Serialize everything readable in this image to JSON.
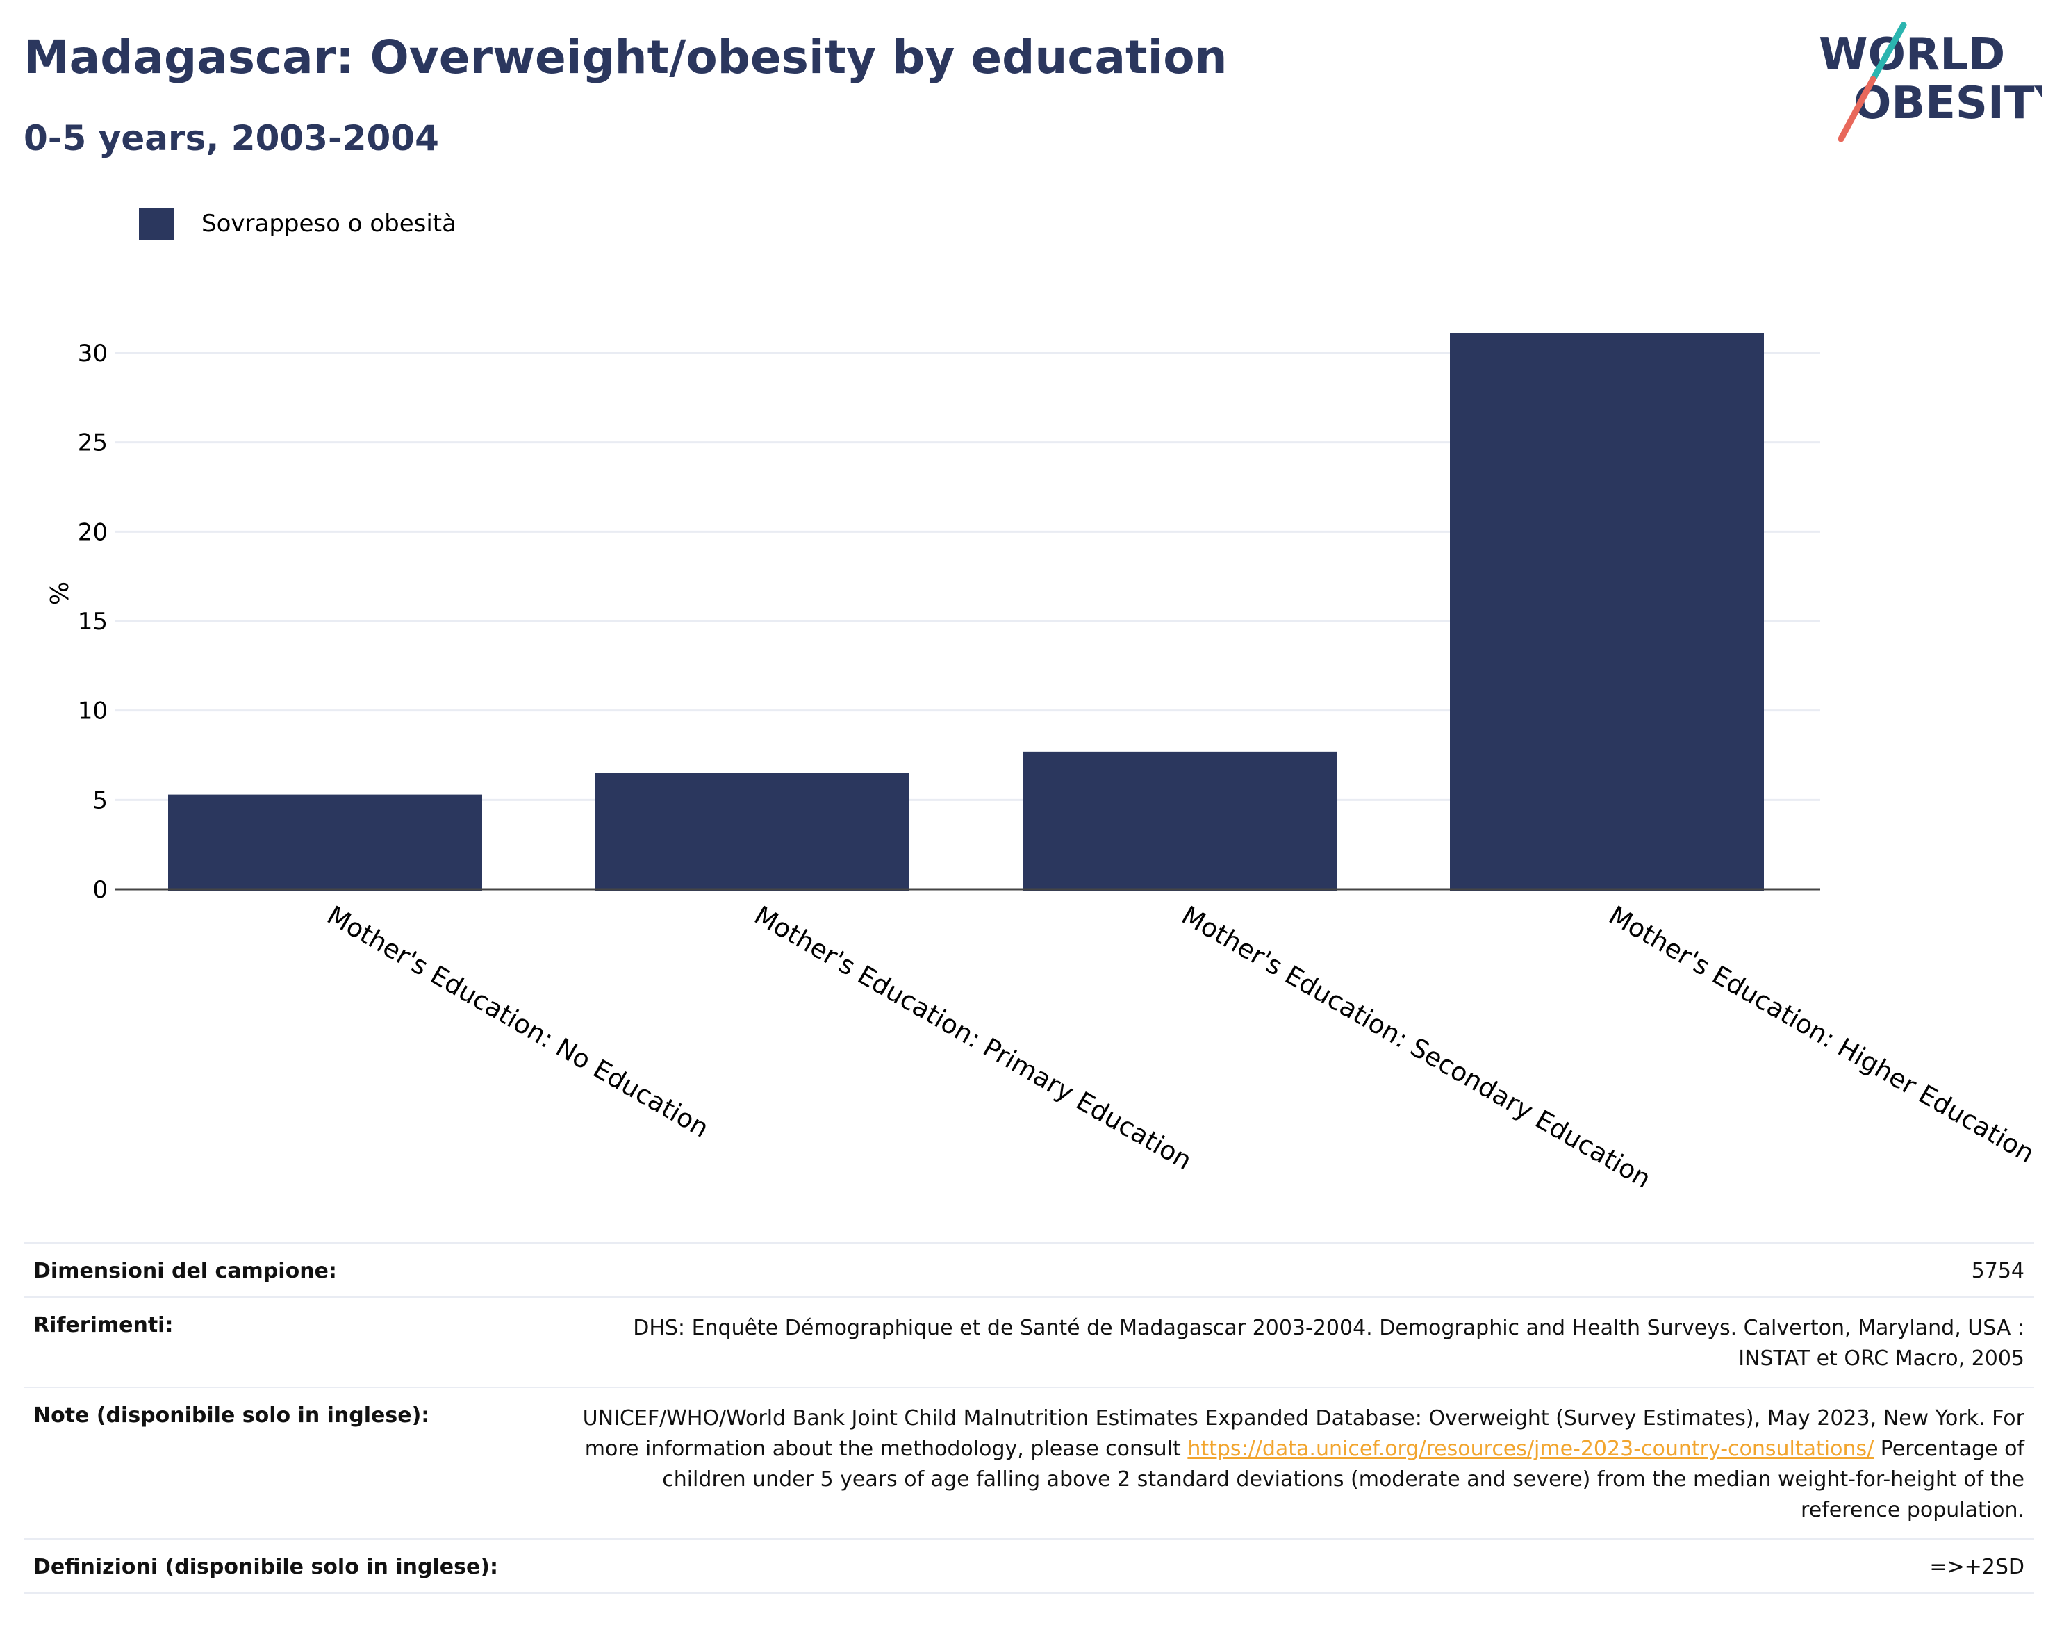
{
  "header": {
    "title": "Madagascar: Overweight/obesity by education",
    "subtitle": "0-5 years, 2003-2004"
  },
  "logo": {
    "line1": "WORLD",
    "line2": "OBESITY"
  },
  "colors": {
    "bar": "#2b375e",
    "title": "#2b375e",
    "link": "#f2a52e",
    "accent_teal": "#2bb5b0",
    "accent_red": "#e8685b"
  },
  "chart_data": {
    "type": "bar",
    "categories": [
      "Mother's Education: No Education",
      "Mother's Education: Primary Education",
      "Mother's Education: Secondary Education",
      "Mother's Education: Higher Education"
    ],
    "series": [
      {
        "name": "Sovrappeso o obesità",
        "values": [
          5.3,
          6.5,
          7.7,
          31.1
        ]
      }
    ],
    "ylabel": "%",
    "xlabel": "",
    "ylim": [
      0,
      33
    ],
    "yticks": [
      0,
      5,
      10,
      15,
      20,
      25,
      30
    ],
    "grid": true,
    "legend": "top-left"
  },
  "metadata": {
    "rows": [
      {
        "label": "Dimensioni del campione:",
        "value": "5754"
      },
      {
        "label": "Riferimenti:",
        "value": "DHS: Enquête Démographique et de Santé de Madagascar 2003-2004. Demographic and Health Surveys. Calverton, Maryland, USA : INSTAT et ORC Macro, 2005"
      },
      {
        "label": "Note (disponibile solo in inglese):",
        "value_before": "UNICEF/WHO/World Bank Joint Child Malnutrition Estimates Expanded Database: Overweight (Survey Estimates), May 2023, New York. For more information about the methodology, please consult ",
        "link": "https://data.unicef.org/resources/jme-2023-country-consultations/",
        "value_after": " Percentage of children under 5 years of age falling above 2 standard deviations (moderate and severe) from the median weight-for-height of the reference population."
      },
      {
        "label": "Definizioni (disponibile solo in inglese):",
        "value": "=>+2SD"
      }
    ]
  }
}
